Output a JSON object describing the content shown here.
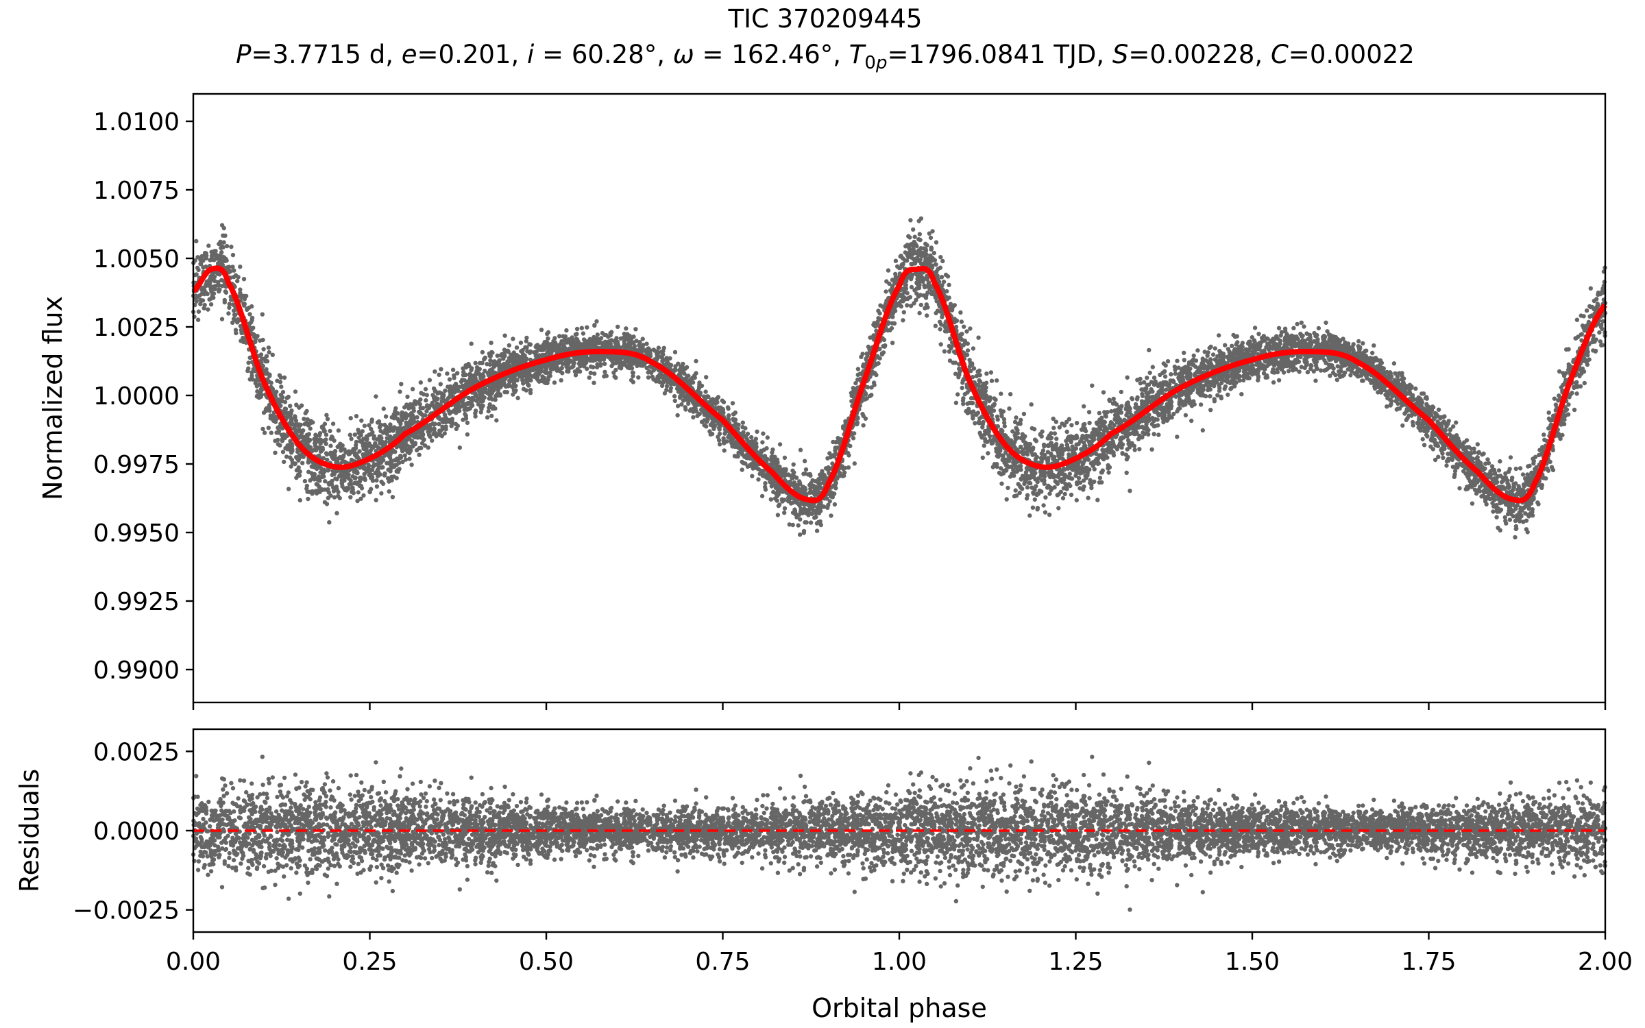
{
  "chart_data": [
    {
      "type": "scatter",
      "panel": "light-curve",
      "title": "TIC 370209445",
      "subtitle": {
        "P": "3.7715",
        "P_unit": "d",
        "e": "0.201",
        "i": "60.28°",
        "omega": "162.46°",
        "T0p": "1796.0841",
        "T0p_unit": "TJD",
        "S": "0.00228",
        "C": "0.00022"
      },
      "xlabel": "",
      "ylabel": "Normalized flux",
      "xlim": [
        0.0,
        2.0
      ],
      "ylim": [
        0.9888,
        1.011
      ],
      "yticks": [
        "0.9900",
        "0.9925",
        "0.9950",
        "0.9975",
        "1.0000",
        "1.0025",
        "1.0050",
        "1.0075",
        "1.0100"
      ],
      "xticks": [
        0.0,
        0.25,
        0.5,
        0.75,
        1.0,
        1.25,
        1.5,
        1.75,
        2.0
      ],
      "grid": false,
      "series": [
        {
          "style": "points",
          "color": "#000000",
          "noise_sigma": 0.0006,
          "description_points": "dense black scatter of normalized flux following the model curve"
        },
        {
          "style": "line",
          "color": "#ff0000",
          "x": [
            0.0,
            0.025,
            0.05,
            0.1,
            0.15,
            0.2,
            0.25,
            0.3,
            0.4,
            0.5,
            0.58,
            0.65,
            0.75,
            0.82,
            0.87,
            0.9,
            0.95,
            1.0,
            1.025,
            1.05,
            1.1,
            1.15,
            1.2,
            1.25,
            1.3,
            1.4,
            1.5,
            1.58,
            1.65,
            1.75,
            1.82,
            1.87,
            1.9,
            1.95,
            2.0
          ],
          "y": [
            1.0038,
            1.0046,
            1.0041,
            1.0005,
            0.9982,
            0.9974,
            0.9977,
            0.9986,
            1.0003,
            1.0013,
            1.0016,
            1.0012,
            0.9991,
            0.9972,
            0.9962,
            0.9968,
            1.0005,
            1.004,
            1.0046,
            1.0041,
            1.0005,
            0.9982,
            0.9974,
            0.9977,
            0.9986,
            1.0003,
            1.0013,
            1.0016,
            1.0012,
            0.9991,
            0.9972,
            0.9962,
            0.9968,
            1.0005,
            1.0033
          ]
        }
      ]
    },
    {
      "type": "scatter",
      "panel": "residuals",
      "xlabel": "Orbital phase",
      "ylabel": "Residuals",
      "xlim": [
        0.0,
        2.0
      ],
      "ylim": [
        -0.0032,
        0.0032
      ],
      "yticks": [
        "−0.0025",
        "0.0000",
        "0.0025"
      ],
      "xticks": [
        "0.00",
        "0.25",
        "0.50",
        "0.75",
        "1.00",
        "1.25",
        "1.50",
        "1.75",
        "2.00"
      ],
      "grid": false,
      "series": [
        {
          "style": "points",
          "color": "#000000",
          "noise_sigma": 0.0006
        },
        {
          "style": "dashed-line",
          "color": "#ff0000",
          "y": 0.0
        }
      ]
    }
  ]
}
